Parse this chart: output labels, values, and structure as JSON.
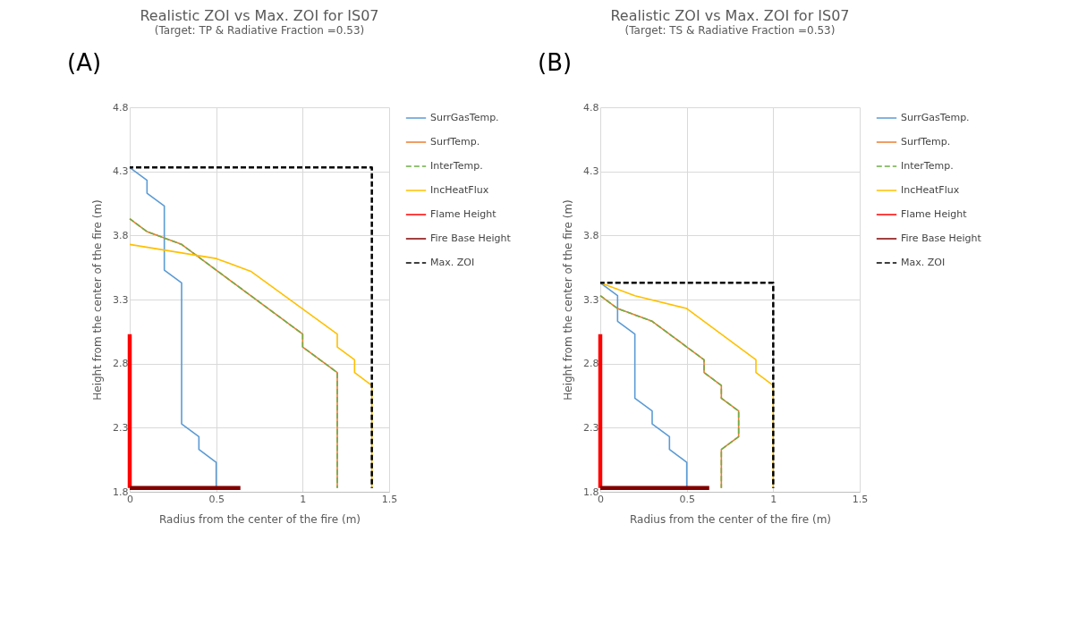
{
  "chart_data": [
    {
      "type": "line",
      "title": "Realistic ZOI vs Max. ZOI for IS07",
      "subtitle": "(Target: TP & Radiative Fraction =0.53)",
      "annotations": [
        "(A)"
      ],
      "xlabel": "Radius from the center of the fire (m)",
      "ylabel": "Height from the center of  the fire (m)",
      "xlim": [
        0,
        1.5
      ],
      "xticks": [
        0,
        0.5,
        1,
        1.5
      ],
      "ylim": [
        1.8,
        4.8
      ],
      "yticks": [
        1.8,
        2.3,
        2.8,
        3.3,
        3.8,
        4.3,
        4.8
      ],
      "grid": true,
      "legend": "right",
      "marker": "none",
      "series": [
        {
          "name": "SurrGasTemp.",
          "color": "#5b9bd5",
          "line_style": "solid",
          "x": [
            0,
            0.1,
            0.1,
            0.2,
            0.2,
            0.3,
            0.3,
            0.4,
            0.4,
            0.5,
            0.5
          ],
          "values": [
            4.33,
            4.23,
            4.13,
            4.03,
            3.53,
            3.43,
            2.33,
            2.23,
            2.13,
            2.03,
            1.83
          ]
        },
        {
          "name": "SurfTemp.",
          "color": "#ed7d31",
          "line_style": "solid",
          "x": [
            0,
            0.1,
            0.3,
            1.0,
            1.0,
            1.2,
            1.2
          ],
          "values": [
            3.93,
            3.83,
            3.73,
            3.03,
            2.93,
            2.73,
            1.83
          ]
        },
        {
          "name": "InterTemp.",
          "color": "#70ad47",
          "line_style": "dashed",
          "x": [
            0,
            0.1,
            0.3,
            1.0,
            1.0,
            1.2,
            1.2
          ],
          "values": [
            3.93,
            3.83,
            3.73,
            3.03,
            2.93,
            2.73,
            1.83
          ]
        },
        {
          "name": "IncHeatFlux",
          "color": "#ffc000",
          "line_style": "solid",
          "x": [
            0,
            0.5,
            0.7,
            1.2,
            1.2,
            1.3,
            1.3,
            1.4,
            1.4
          ],
          "values": [
            3.73,
            3.62,
            3.52,
            3.03,
            2.93,
            2.83,
            2.73,
            2.63,
            1.83
          ]
        },
        {
          "name": "Flame Height",
          "color": "#ff0000",
          "line_style": "solid",
          "x": [
            0,
            0
          ],
          "values": [
            1.83,
            3.03
          ]
        },
        {
          "name": "Fire Base Height",
          "color": "#800000",
          "line_style": "solid",
          "x": [
            0,
            0.64
          ],
          "values": [
            1.83,
            1.83
          ]
        },
        {
          "name": "Max. ZOI",
          "color": "#000000",
          "line_style": "dashed",
          "x": [
            0,
            1.4,
            1.4
          ],
          "values": [
            4.33,
            4.33,
            1.83
          ]
        }
      ]
    },
    {
      "type": "line",
      "title": "Realistic ZOI vs Max. ZOI for IS07",
      "subtitle": "(Target: TS & Radiative Fraction =0.53)",
      "annotations": [
        "(B)"
      ],
      "xlabel": "Radius from the center of the fire (m)",
      "ylabel": "Height from the center of the fire (m)",
      "xlim": [
        0,
        1.5
      ],
      "xticks": [
        0,
        0.5,
        1,
        1.5
      ],
      "ylim": [
        1.8,
        4.8
      ],
      "yticks": [
        1.8,
        2.3,
        2.8,
        3.3,
        3.8,
        4.3,
        4.8
      ],
      "grid": true,
      "legend": "right",
      "marker": "none",
      "series": [
        {
          "name": "SurrGasTemp.",
          "color": "#5b9bd5",
          "line_style": "solid",
          "x": [
            0,
            0.1,
            0.1,
            0.2,
            0.2,
            0.3,
            0.3,
            0.4,
            0.4,
            0.5,
            0.5
          ],
          "values": [
            3.43,
            3.33,
            3.13,
            3.03,
            2.53,
            2.43,
            2.33,
            2.23,
            2.13,
            2.03,
            1.83
          ]
        },
        {
          "name": "SurfTemp.",
          "color": "#ed7d31",
          "line_style": "solid",
          "x": [
            0,
            0.1,
            0.3,
            0.5,
            0.6,
            0.6,
            0.7,
            0.7,
            0.8,
            0.8,
            0.7,
            0.7
          ],
          "values": [
            3.33,
            3.23,
            3.13,
            2.93,
            2.83,
            2.73,
            2.63,
            2.53,
            2.43,
            2.23,
            2.13,
            1.83
          ]
        },
        {
          "name": "InterTemp.",
          "color": "#70ad47",
          "line_style": "dashed",
          "x": [
            0,
            0.1,
            0.3,
            0.5,
            0.6,
            0.6,
            0.7,
            0.7,
            0.8,
            0.8,
            0.7,
            0.7
          ],
          "values": [
            3.33,
            3.23,
            3.13,
            2.93,
            2.83,
            2.73,
            2.63,
            2.53,
            2.43,
            2.23,
            2.13,
            1.83
          ]
        },
        {
          "name": "IncHeatFlux",
          "color": "#ffc000",
          "line_style": "solid",
          "x": [
            0,
            0.2,
            0.5,
            0.9,
            0.9,
            1.0,
            1.0
          ],
          "values": [
            3.43,
            3.33,
            3.23,
            2.83,
            2.73,
            2.63,
            1.83
          ]
        },
        {
          "name": "Flame Height",
          "color": "#ff0000",
          "line_style": "solid",
          "x": [
            0,
            0
          ],
          "values": [
            1.83,
            3.03
          ]
        },
        {
          "name": "Fire Base Height",
          "color": "#800000",
          "line_style": "solid",
          "x": [
            0,
            0.63
          ],
          "values": [
            1.83,
            1.83
          ]
        },
        {
          "name": "Max. ZOI",
          "color": "#000000",
          "line_style": "dashed",
          "x": [
            0,
            1.0,
            1.0
          ],
          "values": [
            3.43,
            3.43,
            1.83
          ]
        }
      ]
    }
  ]
}
